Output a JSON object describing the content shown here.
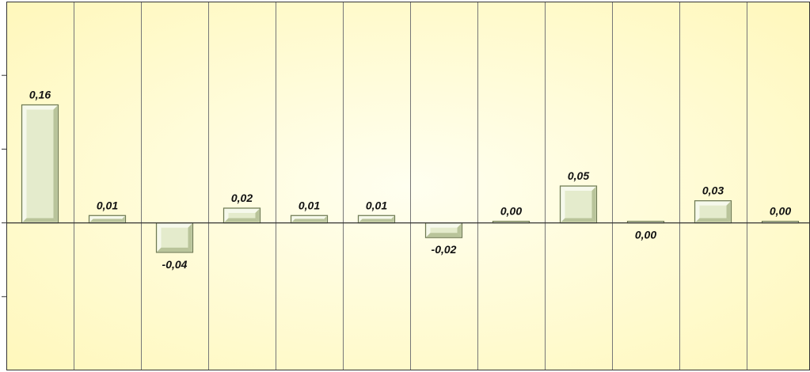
{
  "colors": {
    "plot_bg_center": "#fffff0",
    "plot_bg_edge": "#fff7b8",
    "bar_face": "#e4ebcc",
    "bar_bevel_light": "#f6f9ec",
    "bar_bevel_dark": "#b9c49a",
    "bar_border": "#6f7a55",
    "gridline": "#777777",
    "axis": "#333333"
  },
  "chart_data": {
    "type": "bar",
    "categories": [
      "",
      "",
      "",
      "",
      "",
      "",
      "",
      "",
      "",
      "",
      "",
      ""
    ],
    "values": [
      0.16,
      0.01,
      -0.04,
      0.02,
      0.01,
      0.01,
      -0.02,
      0.0,
      0.05,
      0.0,
      0.03,
      0.0
    ],
    "data_labels": [
      "0,16",
      "0,01",
      "-0,04",
      "0,02",
      "0,01",
      "0,01",
      "-0,02",
      "0,00",
      "0,05",
      "0,00",
      "0,03",
      "0,00"
    ],
    "label_offsets": [
      0,
      0,
      0,
      0,
      0,
      0,
      0,
      0,
      0,
      0,
      0,
      0
    ],
    "ylim": [
      -0.2,
      0.3
    ],
    "grid": {
      "vertical": true,
      "horizontal": false
    },
    "legend": "none"
  }
}
